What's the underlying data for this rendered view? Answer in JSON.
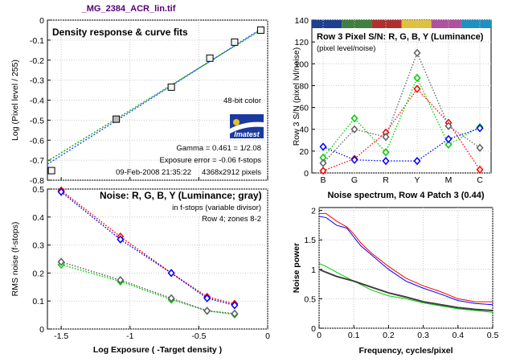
{
  "file_title": "_MG_2384_ACR_lin.tif",
  "colors": {
    "title": "#550077",
    "red": "#ff0000",
    "green": "#00cc00",
    "blue": "#0000ff",
    "gray": "#606060",
    "darkgray": "#404040",
    "pink": "#ff8080",
    "fit_blue": "#2255ff",
    "fit_green": "#22aa22"
  },
  "chart_data": [
    {
      "id": "density",
      "type": "scatter",
      "title": "Density response & curve fits",
      "xlabel": "",
      "ylabel": "Log (Pixel level / 255)",
      "xlim": [
        -1.6,
        0
      ],
      "ylim": [
        -0.8,
        0
      ],
      "xticks": [
        -1.5,
        -1,
        -0.5,
        0
      ],
      "xtick_labels": [
        "",
        "",
        "",
        ""
      ],
      "yticks": [
        0,
        -0.1,
        -0.2,
        -0.3,
        -0.4,
        -0.5,
        -0.6,
        -0.7,
        -0.8
      ],
      "ytick_labels": [
        "0",
        "-0.1",
        "-0.2",
        "-0.3",
        "-0.4",
        "-0.5",
        "-0.6",
        "-0.7",
        "-0.8"
      ],
      "grid": true,
      "points": [
        {
          "x": -1.57,
          "y": -0.752,
          "filled": false
        },
        {
          "x": -1.1,
          "y": -0.495,
          "filled": true
        },
        {
          "x": -0.7,
          "y": -0.335,
          "filled": false
        },
        {
          "x": -0.42,
          "y": -0.19,
          "filled": false
        },
        {
          "x": -0.24,
          "y": -0.11,
          "filled": false
        },
        {
          "x": -0.05,
          "y": -0.05,
          "filled": false
        }
      ],
      "fit_lines": [
        {
          "color": "blue",
          "x": [
            -1.6,
            -0.05
          ],
          "y": [
            -0.72,
            -0.045
          ]
        },
        {
          "color": "green",
          "x": [
            -1.6,
            -0.05
          ],
          "y": [
            -0.705,
            -0.05
          ]
        }
      ],
      "annotations": {
        "bit_depth": "48-bit color",
        "logo": "Imatest",
        "gamma": "Gamma = 0.461 = 1/2.08",
        "exposure_error": "Exposure error = -0.06 f-stops",
        "datetime": "09-Feb-2008 21:35:22",
        "dimensions": "4368x2912 pixels"
      }
    },
    {
      "id": "sn",
      "type": "line",
      "title": "Row 3 Pixel S/N: R, G, B, Y (Luminance)",
      "subtitle": "(pixel level/noise)",
      "ylabel": "Row 3 S/N (pixel lvl/noise)",
      "categories": [
        "B",
        "G",
        "R",
        "Y",
        "M",
        "C"
      ],
      "ylim": [
        0,
        140
      ],
      "yticks": [
        0,
        20,
        40,
        60,
        80,
        100,
        120,
        140
      ],
      "ytick_labels": [
        "0",
        "20",
        "40",
        "60",
        "80",
        "100",
        "120",
        "140"
      ],
      "patch_colors": [
        "#1f3f8f",
        "#3f7f3f",
        "#b03030",
        "#e0c040",
        "#b050a0",
        "#2090c0"
      ],
      "grid": true,
      "series": [
        {
          "color": "red",
          "values": [
            2,
            13,
            37,
            77,
            46,
            3
          ]
        },
        {
          "color": "green",
          "values": [
            14,
            50,
            19,
            87,
            26,
            42
          ]
        },
        {
          "color": "blue",
          "values": [
            24,
            12,
            11,
            11,
            31,
            41
          ]
        },
        {
          "color": "gray",
          "values": [
            9,
            40,
            33,
            110,
            43,
            23
          ]
        }
      ]
    },
    {
      "id": "noise",
      "type": "line",
      "title": "Noise: R, G, B, Y (Luminance; gray)",
      "xlabel": "Log Exposure ( -Target density )",
      "ylabel": "RMS noise (f-stops)",
      "xlim": [
        -1.6,
        0
      ],
      "ylim": [
        0,
        0.5
      ],
      "xticks": [
        -1.5,
        -1,
        -0.5,
        0
      ],
      "xtick_labels": [
        "-1.5",
        "-1",
        "-0.5",
        "0"
      ],
      "yticks": [
        0,
        0.1,
        0.2,
        0.3,
        0.4,
        0.5
      ],
      "ytick_labels": [
        "0",
        "0.1",
        "0.2",
        "0.3",
        "0.4",
        "0.5"
      ],
      "grid": true,
      "annotations": [
        "in f-stops (variable divisor)",
        "Row 4; zones 8-2"
      ],
      "x": [
        -1.5,
        -1.07,
        -0.7,
        -0.44,
        -0.24
      ],
      "series": [
        {
          "color": "red",
          "values": [
            0.495,
            0.33,
            0.2,
            0.115,
            0.09
          ]
        },
        {
          "color": "blue",
          "values": [
            0.49,
            0.32,
            0.2,
            0.11,
            0.085
          ]
        },
        {
          "color": "green",
          "values": [
            0.23,
            0.17,
            0.105,
            0.065,
            0.052
          ]
        },
        {
          "color": "gray",
          "values": [
            0.24,
            0.175,
            0.11,
            0.065,
            0.055
          ]
        }
      ]
    },
    {
      "id": "spectrum",
      "type": "line",
      "title": "Noise spectrum, Row 4 Patch 3 (0.44)",
      "xlabel": "Frequency, cycles/pixel",
      "ylabel": "Noise power",
      "xlim": [
        0,
        0.5
      ],
      "ylim": [
        0,
        2.05
      ],
      "xticks": [
        0,
        0.1,
        0.2,
        0.3,
        0.4,
        0.5
      ],
      "xtick_labels": [
        "0",
        "0.1",
        "0.2",
        "0.3",
        "0.4",
        "0.5"
      ],
      "yticks": [
        0,
        0.5,
        1,
        1.5,
        2
      ],
      "ytick_labels": [
        "0",
        "0.5",
        "1",
        "1.5",
        "2"
      ],
      "grid": true,
      "series": [
        {
          "color": "red",
          "x": [
            0,
            0.02,
            0.05,
            0.08,
            0.1,
            0.12,
            0.15,
            0.2,
            0.25,
            0.3,
            0.35,
            0.4,
            0.45,
            0.5
          ],
          "values": [
            1.95,
            1.95,
            1.82,
            1.72,
            1.6,
            1.45,
            1.28,
            1.05,
            0.85,
            0.72,
            0.62,
            0.5,
            0.45,
            0.45
          ]
        },
        {
          "color": "blue",
          "x": [
            0,
            0.02,
            0.05,
            0.08,
            0.1,
            0.12,
            0.15,
            0.2,
            0.25,
            0.3,
            0.35,
            0.4,
            0.45,
            0.5
          ],
          "values": [
            1.9,
            1.88,
            1.75,
            1.7,
            1.55,
            1.4,
            1.25,
            1.0,
            0.8,
            0.68,
            0.58,
            0.47,
            0.42,
            0.4
          ]
        },
        {
          "color": "green",
          "x": [
            0,
            0.02,
            0.05,
            0.1,
            0.15,
            0.2,
            0.25,
            0.3,
            0.35,
            0.4,
            0.45,
            0.5
          ],
          "values": [
            1.1,
            1.05,
            0.95,
            0.8,
            0.65,
            0.55,
            0.5,
            0.43,
            0.38,
            0.33,
            0.3,
            0.27
          ]
        },
        {
          "color": "darkgray",
          "x": [
            0,
            0.02,
            0.05,
            0.1,
            0.15,
            0.2,
            0.25,
            0.3,
            0.35,
            0.4,
            0.45,
            0.5
          ],
          "values": [
            1.0,
            0.95,
            0.88,
            0.8,
            0.7,
            0.6,
            0.53,
            0.45,
            0.4,
            0.35,
            0.32,
            0.3
          ]
        }
      ]
    }
  ]
}
